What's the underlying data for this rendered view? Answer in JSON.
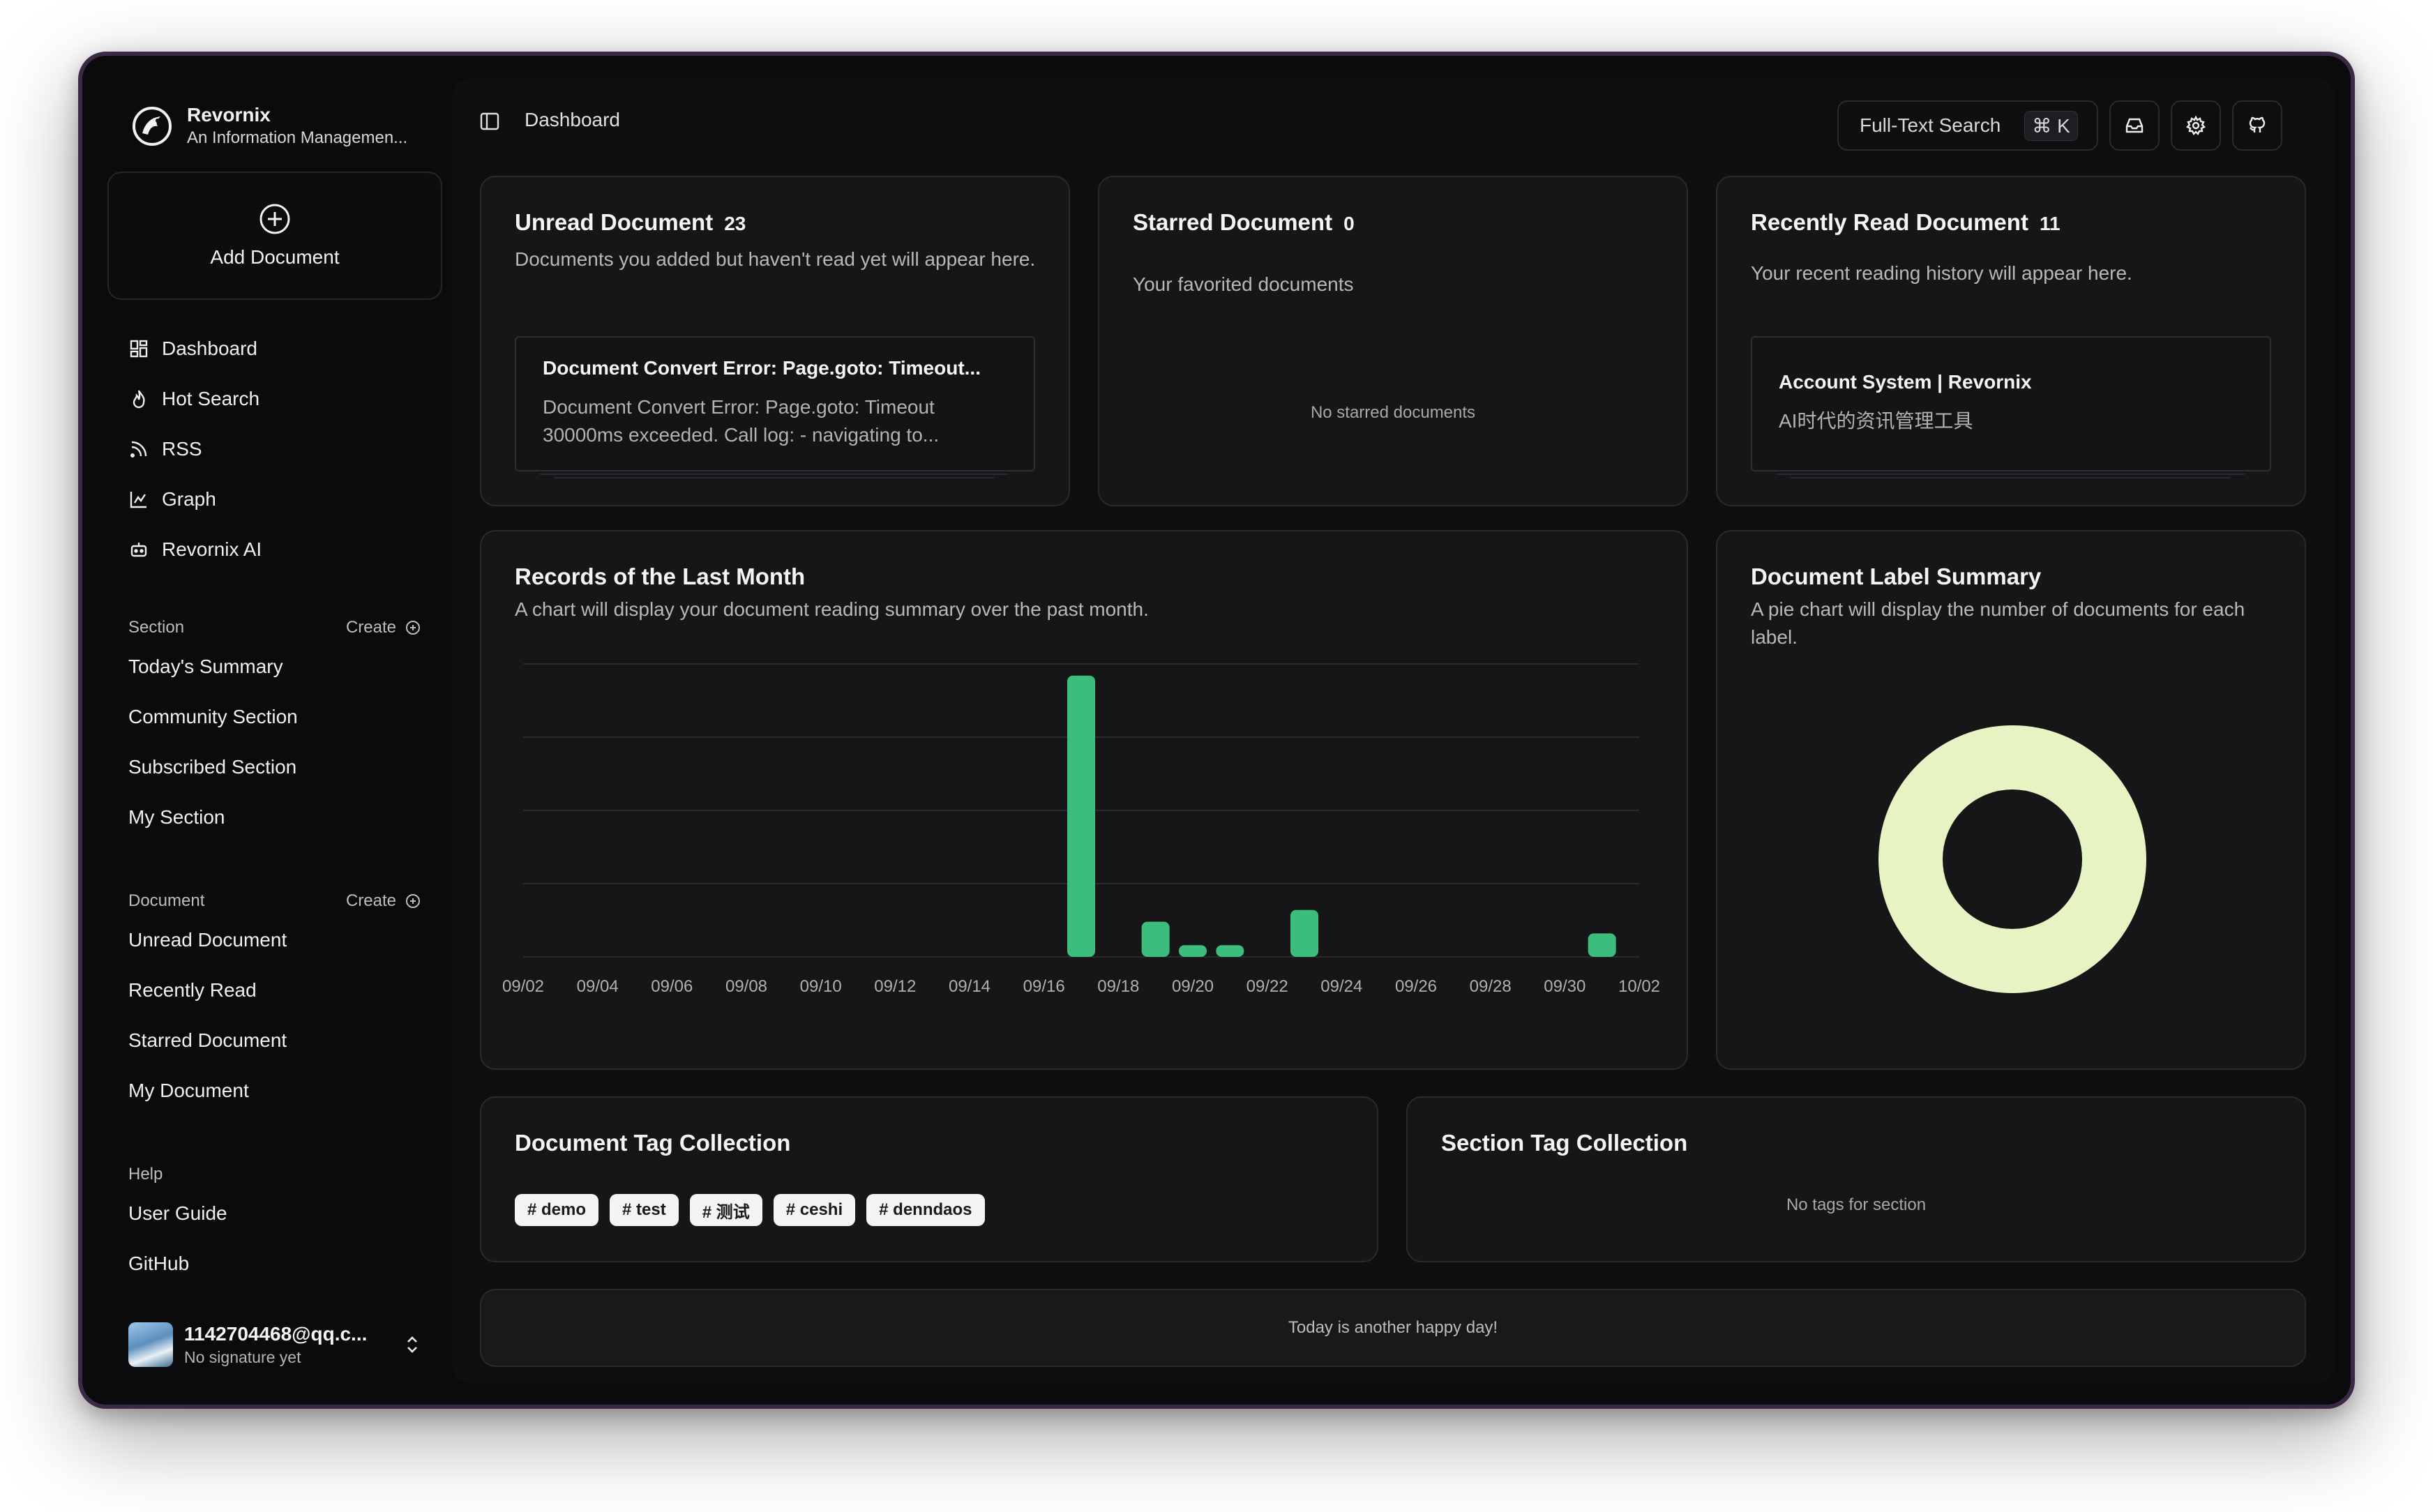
{
  "app": {
    "name": "Revornix",
    "subtitle": "An Information Managemen..."
  },
  "sidebar": {
    "add_document": "Add Document",
    "nav": [
      {
        "label": "Dashboard",
        "icon": "dashboard-icon"
      },
      {
        "label": "Hot Search",
        "icon": "flame-icon"
      },
      {
        "label": "RSS",
        "icon": "rss-icon"
      },
      {
        "label": "Graph",
        "icon": "graph-icon"
      },
      {
        "label": "Revornix AI",
        "icon": "bot-icon"
      }
    ],
    "section_group": {
      "title": "Section",
      "create": "Create",
      "items": [
        "Today's Summary",
        "Community Section",
        "Subscribed Section",
        "My Section"
      ]
    },
    "document_group": {
      "title": "Document",
      "create": "Create",
      "items": [
        "Unread Document",
        "Recently Read",
        "Starred Document",
        "My Document"
      ]
    },
    "help_group": {
      "title": "Help",
      "items": [
        "User Guide",
        "GitHub"
      ]
    },
    "user": {
      "name": "1142704468@qq.c...",
      "signature": "No signature yet"
    }
  },
  "topbar": {
    "breadcrumb": "Dashboard",
    "search_label": "Full-Text Search",
    "search_shortcut": "⌘ K"
  },
  "cards": {
    "unread": {
      "title": "Unread Document",
      "count": "23",
      "desc": "Documents you added but haven't read yet will appear here.",
      "item": {
        "title": "Document Convert Error: Page.goto: Timeout...",
        "desc": "Document Convert Error: Page.goto: Timeout 30000ms exceeded. Call log: - navigating to..."
      }
    },
    "starred": {
      "title": "Starred Document",
      "count": "0",
      "desc": "Your favorited documents",
      "empty": "No starred documents"
    },
    "recent": {
      "title": "Recently Read Document",
      "count": "11",
      "desc": "Your recent reading history will appear here.",
      "item": {
        "title": "Account System | Revornix",
        "desc": "AI时代的资讯管理工具"
      }
    },
    "records": {
      "title": "Records of the Last Month",
      "desc": "A chart will display your document reading summary over the past month."
    },
    "labels": {
      "title": "Document Label Summary",
      "desc": "A pie chart will display the number of documents for each label."
    },
    "doc_tags": {
      "title": "Document Tag Collection",
      "tags": [
        "# demo",
        "# test",
        "# 测试",
        "# ceshi",
        "# denndaos"
      ]
    },
    "section_tags": {
      "title": "Section Tag Collection",
      "empty": "No tags for section"
    },
    "footer": {
      "text": "Today is another happy day!"
    }
  },
  "chart_data": [
    {
      "type": "bar",
      "title": "Records of the Last Month",
      "x": [
        "09/02",
        "09/03",
        "09/04",
        "09/05",
        "09/06",
        "09/07",
        "09/08",
        "09/09",
        "09/10",
        "09/11",
        "09/12",
        "09/13",
        "09/14",
        "09/15",
        "09/16",
        "09/17",
        "09/18",
        "09/19",
        "09/20",
        "09/21",
        "09/22",
        "09/23",
        "09/24",
        "09/25",
        "09/26",
        "09/27",
        "09/28",
        "09/29",
        "09/30",
        "10/01",
        "10/02"
      ],
      "x_tick_labels": [
        "09/02",
        "09/04",
        "09/06",
        "09/08",
        "09/10",
        "09/12",
        "09/14",
        "09/16",
        "09/18",
        "09/20",
        "09/22",
        "09/24",
        "09/26",
        "09/28",
        "09/30",
        "10/02"
      ],
      "values": [
        0,
        0,
        0,
        0,
        0,
        0,
        0,
        0,
        0,
        0,
        0,
        0,
        0,
        0,
        0,
        48,
        0,
        6,
        2,
        2,
        0,
        8,
        0,
        0,
        0,
        0,
        0,
        0,
        0,
        4,
        0
      ],
      "ylim": [
        0,
        50
      ],
      "grid": true,
      "color": "#3dbd7d"
    },
    {
      "type": "pie",
      "title": "Document Label Summary",
      "values": [
        1
      ],
      "colors": [
        "#e6f4c4"
      ]
    }
  ]
}
